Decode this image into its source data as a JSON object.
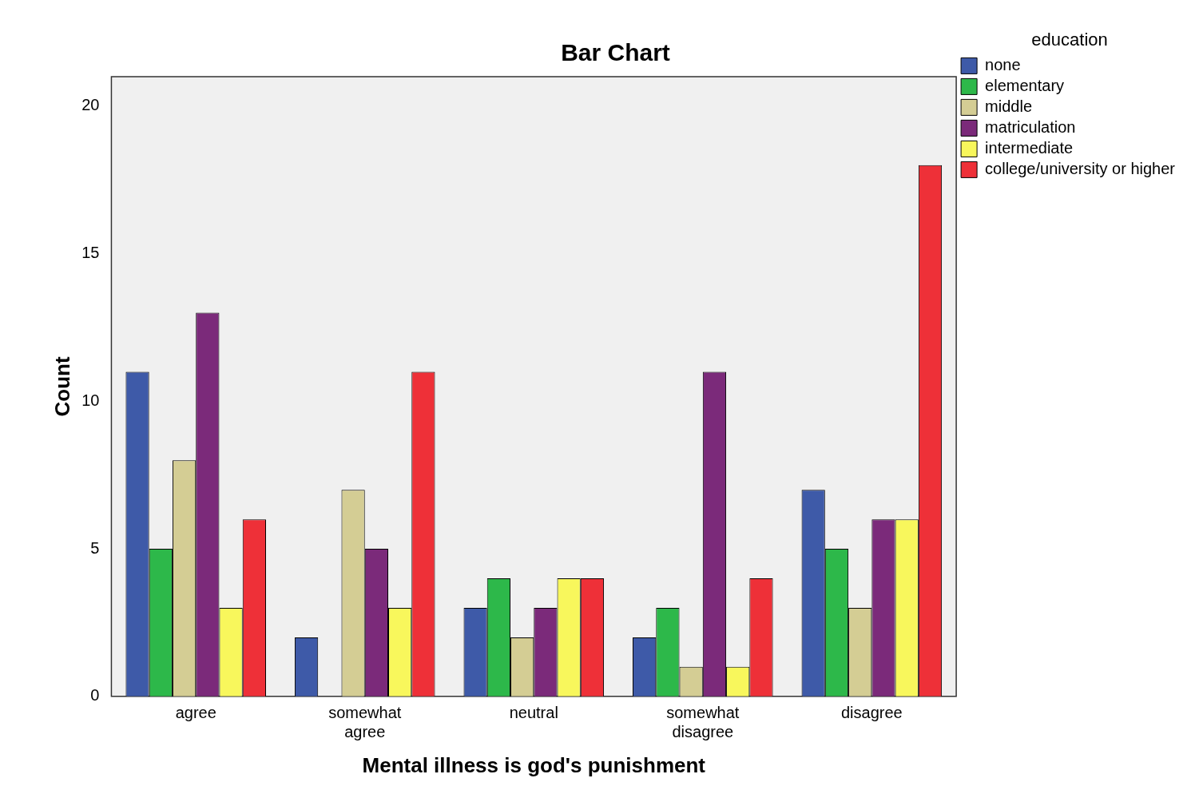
{
  "chart_data": {
    "type": "bar",
    "title": "Bar Chart",
    "xlabel": "Mental illness is god's punishment",
    "ylabel": "Count",
    "legend_title": "education",
    "legend": "right",
    "grid": false,
    "categories": [
      "agree",
      "somewhat agree",
      "neutral",
      "somewhat disagree",
      "disagree"
    ],
    "ylim": [
      0,
      21
    ],
    "yticks": [
      0,
      5,
      10,
      15,
      20
    ],
    "series": [
      {
        "name": "none",
        "color": "#3e5aa8",
        "values": [
          11,
          2,
          3,
          2,
          7
        ]
      },
      {
        "name": "elementary",
        "color": "#2db84a",
        "values": [
          5,
          0,
          4,
          3,
          5
        ]
      },
      {
        "name": "middle",
        "color": "#d4cd94",
        "values": [
          8,
          7,
          2,
          1,
          3
        ]
      },
      {
        "name": "matriculation",
        "color": "#7b2a7a",
        "values": [
          13,
          5,
          3,
          11,
          6
        ]
      },
      {
        "name": "intermediate",
        "color": "#f8f75c",
        "values": [
          3,
          3,
          4,
          1,
          6
        ]
      },
      {
        "name": "college/university or higher",
        "color": "#ee3038",
        "values": [
          6,
          11,
          4,
          4,
          18
        ]
      }
    ]
  }
}
